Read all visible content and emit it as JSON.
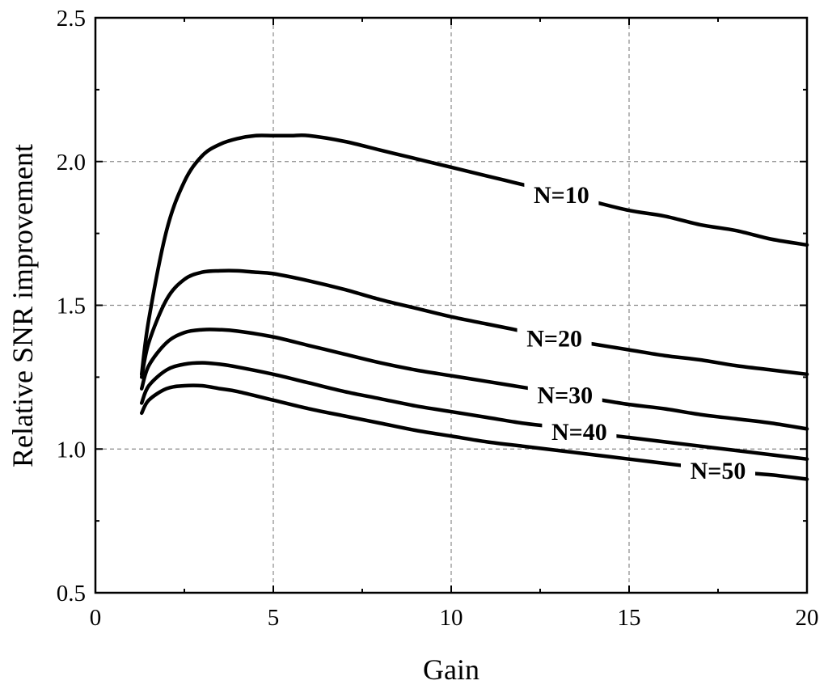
{
  "chart_data": {
    "type": "line",
    "xlabel": "Gain",
    "ylabel": "Relative SNR improvement",
    "xlim": [
      0,
      20
    ],
    "ylim": [
      0.5,
      2.5
    ],
    "xticks": [
      0,
      5,
      10,
      15,
      20
    ],
    "xtick_labels": [
      "0",
      "5",
      "10",
      "15",
      "20"
    ],
    "yticks": [
      0.5,
      1.0,
      1.5,
      2.0,
      2.5
    ],
    "ytick_labels": [
      "0.5",
      "1.0",
      "1.5",
      "2.0",
      "2.5"
    ],
    "grid": true,
    "line_color": "#000000",
    "series": [
      {
        "name": "N=10",
        "label_x": 13.1,
        "x": [
          1.3,
          1.5,
          2,
          2.5,
          3,
          3.5,
          4,
          4.5,
          5,
          5.5,
          6,
          7,
          8,
          9,
          10,
          11,
          12,
          13,
          14,
          15,
          16,
          17,
          18,
          19,
          20
        ],
        "y": [
          1.26,
          1.45,
          1.76,
          1.93,
          2.02,
          2.06,
          2.08,
          2.09,
          2.09,
          2.09,
          2.09,
          2.07,
          2.04,
          2.01,
          1.98,
          1.95,
          1.92,
          1.89,
          1.86,
          1.83,
          1.81,
          1.78,
          1.76,
          1.73,
          1.71
        ]
      },
      {
        "name": "N=20",
        "label_x": 12.9,
        "x": [
          1.3,
          1.5,
          2,
          2.5,
          3,
          3.5,
          4,
          4.5,
          5,
          6,
          7,
          8,
          9,
          10,
          11,
          12,
          13,
          14,
          15,
          16,
          17,
          18,
          19,
          20
        ],
        "y": [
          1.25,
          1.37,
          1.52,
          1.59,
          1.615,
          1.62,
          1.62,
          1.615,
          1.61,
          1.585,
          1.555,
          1.52,
          1.49,
          1.46,
          1.435,
          1.41,
          1.385,
          1.365,
          1.345,
          1.325,
          1.31,
          1.29,
          1.275,
          1.26
        ]
      },
      {
        "name": "N=30",
        "label_x": 13.2,
        "x": [
          1.3,
          1.5,
          2,
          2.5,
          3,
          3.5,
          4,
          5,
          6,
          7,
          8,
          9,
          10,
          11,
          12,
          13,
          14,
          15,
          16,
          17,
          18,
          19,
          20
        ],
        "y": [
          1.21,
          1.29,
          1.37,
          1.405,
          1.415,
          1.415,
          1.41,
          1.39,
          1.36,
          1.33,
          1.3,
          1.275,
          1.255,
          1.235,
          1.215,
          1.195,
          1.175,
          1.155,
          1.14,
          1.12,
          1.105,
          1.09,
          1.07
        ]
      },
      {
        "name": "N=40",
        "label_x": 13.6,
        "x": [
          1.3,
          1.5,
          2,
          2.5,
          3,
          3.5,
          4,
          5,
          6,
          7,
          8,
          9,
          10,
          11,
          12,
          13,
          14,
          15,
          16,
          17,
          18,
          19,
          20
        ],
        "y": [
          1.16,
          1.22,
          1.275,
          1.295,
          1.3,
          1.295,
          1.285,
          1.26,
          1.23,
          1.2,
          1.175,
          1.15,
          1.13,
          1.11,
          1.09,
          1.075,
          1.055,
          1.04,
          1.025,
          1.01,
          0.995,
          0.98,
          0.965
        ]
      },
      {
        "name": "N=50",
        "label_x": 17.5,
        "x": [
          1.3,
          1.5,
          2,
          2.5,
          3,
          3.5,
          4,
          5,
          6,
          7,
          8,
          9,
          10,
          11,
          12,
          13,
          14,
          15,
          16,
          17,
          18,
          19,
          20
        ],
        "y": [
          1.125,
          1.17,
          1.21,
          1.22,
          1.22,
          1.21,
          1.2,
          1.17,
          1.14,
          1.115,
          1.09,
          1.065,
          1.045,
          1.025,
          1.01,
          0.995,
          0.98,
          0.965,
          0.95,
          0.935,
          0.92,
          0.91,
          0.895
        ]
      }
    ]
  }
}
